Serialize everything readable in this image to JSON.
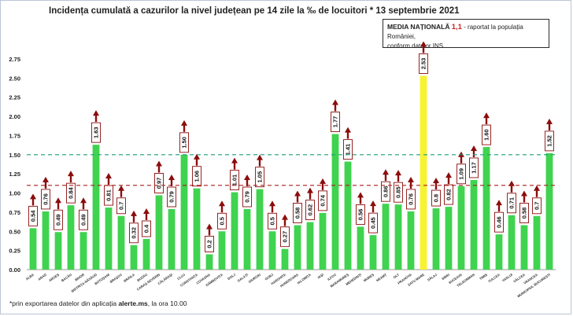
{
  "title": "Incidența cumulată a cazurilor la nivel județean pe 14 zile la ‰ de locuitori * 13 septembrie 2021",
  "media_box": {
    "label": "MEDIA NAȚIONALĂ",
    "value": "1,1",
    "text_line1": " - raportat la populația României,",
    "text_line2": "conform datelor INS"
  },
  "footnote": {
    "prefix": "*prin exportarea datelor din aplicația ",
    "app": "alerte.ms",
    "suffix": ", la ora 10.00"
  },
  "colors": {
    "bar": "#3fd34f",
    "highlight_bar": "#f7f232",
    "arrow": "#8b0d0d",
    "line_green": "#1a9e7a",
    "line_red": "#a81c1c"
  },
  "chart_data": {
    "type": "bar",
    "categories": [
      "ALBA",
      "ARAD",
      "ARGEȘ",
      "BACĂU",
      "BIHOR",
      "BISTRIȚA-NĂSĂUD",
      "BOTOȘANI",
      "BRAȘOV",
      "BRĂILA",
      "BUZĂU",
      "CARAȘ-SEVERIN",
      "CĂLĂRAȘI",
      "CLUJ",
      "CONSTANȚA",
      "COVASNA",
      "DÂMBOVIȚA",
      "DOLJ",
      "GALAȚI",
      "GIURGIU",
      "GORJ",
      "HARGHITA",
      "HUNEDOARA",
      "IALOMIȚA",
      "IAȘI",
      "ILFOV",
      "MARAMUREȘ",
      "MEHEDINȚI",
      "MUREȘ",
      "NEAMȚ",
      "OLT",
      "PRAHOVA",
      "SATU MARE",
      "SĂLAJ",
      "SIBIU",
      "SUCEAVA",
      "TELEORMAN",
      "TIMIȘ",
      "TULCEA",
      "VASLUI",
      "VÂLCEA",
      "VRANCEA",
      "MUNICIPIUL BUCUREȘTI"
    ],
    "values": [
      0.54,
      0.76,
      0.49,
      0.84,
      0.49,
      1.63,
      0.81,
      0.7,
      0.32,
      0.4,
      0.97,
      0.79,
      1.5,
      1.06,
      0.2,
      0.5,
      1.01,
      0.79,
      1.05,
      0.5,
      0.27,
      0.58,
      0.62,
      0.74,
      1.77,
      1.41,
      0.56,
      0.45,
      0.86,
      0.85,
      0.76,
      2.53,
      0.8,
      0.82,
      1.09,
      1.17,
      1.6,
      0.46,
      0.71,
      0.58,
      0.7,
      1.52
    ],
    "value_labels": [
      "0.54",
      "0.76",
      "0.49",
      "0.84",
      "0.49",
      "1.63",
      "0.81",
      "0.7",
      "0.32",
      "0.4",
      "0.97",
      "0.79",
      "1.50",
      "1.06",
      "0.2",
      "0.5",
      "1.01",
      "0.79",
      "1.05",
      "0.5",
      "0.27",
      "0.58",
      "0.62",
      "0.74",
      "1.77",
      "1.41",
      "0.56",
      "0.45",
      "0.86",
      "0.85",
      "0.76",
      "2.53",
      "0.8",
      "0.82",
      "1.09",
      "1.17",
      "1.60",
      "0.46",
      "0.71",
      "0.58",
      "0.7",
      "1.52"
    ],
    "highlight": "SATU MARE",
    "y_ticks": [
      "0.00",
      "0.25",
      "0.50",
      "0.75",
      "1.00",
      "1.25",
      "1.50",
      "1.75",
      "2.00",
      "2.25",
      "2.50",
      "2.75"
    ],
    "ylim": [
      0,
      2.75
    ],
    "reference_lines": [
      {
        "value": 1.5,
        "style": "dashed",
        "color": "#1a9e7a"
      },
      {
        "value": 1.1,
        "style": "dashed",
        "color": "#a81c1c"
      }
    ],
    "grid": false,
    "legend": "none"
  }
}
